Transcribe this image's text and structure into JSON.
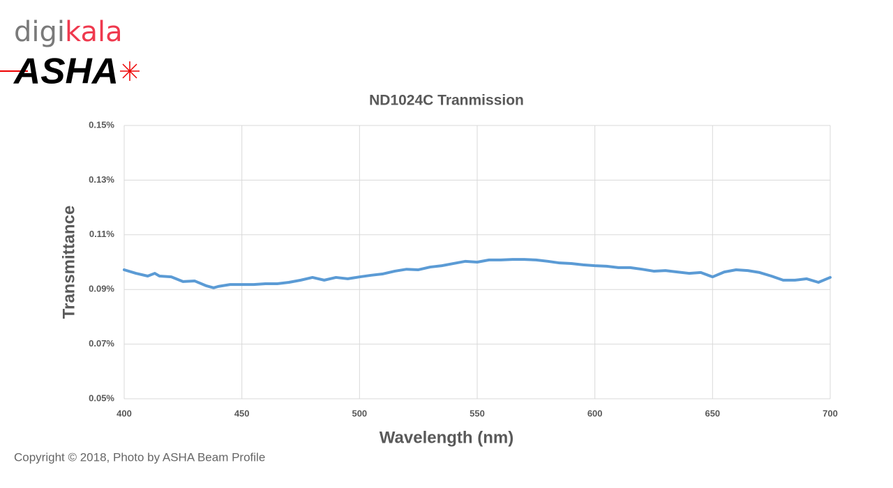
{
  "logo": {
    "digikala": [
      "digi",
      "kala"
    ],
    "asha": "ASHA"
  },
  "copyright": "Copyright © 2018, Photo by ASHA Beam Profile",
  "chart_data": {
    "type": "line",
    "title": "ND1024C Tranmission",
    "x_label": "Wavelength (nm)",
    "y_label": "Transmittance",
    "x": [
      400,
      405,
      410,
      413,
      415,
      420,
      425,
      430,
      435,
      438,
      440,
      445,
      450,
      455,
      460,
      465,
      470,
      475,
      480,
      485,
      490,
      495,
      500,
      505,
      510,
      515,
      520,
      525,
      530,
      535,
      540,
      545,
      550,
      555,
      560,
      565,
      570,
      575,
      580,
      585,
      590,
      595,
      600,
      605,
      610,
      615,
      620,
      625,
      630,
      635,
      640,
      645,
      650,
      655,
      660,
      665,
      670,
      675,
      680,
      685,
      690,
      695,
      700
    ],
    "values": [
      0.0972,
      0.0959,
      0.0949,
      0.0959,
      0.0949,
      0.0946,
      0.0929,
      0.0931,
      0.0913,
      0.0906,
      0.0911,
      0.0918,
      0.0918,
      0.0918,
      0.0921,
      0.0921,
      0.0926,
      0.0934,
      0.0944,
      0.0934,
      0.0944,
      0.0939,
      0.0946,
      0.0952,
      0.0957,
      0.0967,
      0.0974,
      0.0972,
      0.0982,
      0.0987,
      0.0995,
      0.1003,
      0.1,
      0.1008,
      0.1008,
      0.101,
      0.101,
      0.1008,
      0.1003,
      0.0997,
      0.0995,
      0.099,
      0.0987,
      0.0985,
      0.098,
      0.098,
      0.0974,
      0.0967,
      0.0969,
      0.0964,
      0.0959,
      0.0962,
      0.0946,
      0.0964,
      0.0972,
      0.0969,
      0.0962,
      0.0949,
      0.0934,
      0.0934,
      0.0939,
      0.0926,
      0.0944
    ],
    "color": "#5b9bd5",
    "xlim": [
      400,
      700
    ],
    "xticks": [
      400,
      450,
      500,
      550,
      600,
      650,
      700
    ],
    "ylim": [
      0.05,
      0.15
    ],
    "yticks": [
      {
        "value": 0.05,
        "label": "0.05%"
      },
      {
        "value": 0.07,
        "label": "0.07%"
      },
      {
        "value": 0.09,
        "label": "0.09%"
      },
      {
        "value": 0.11,
        "label": "0.11%"
      },
      {
        "value": 0.13,
        "label": "0.13%"
      },
      {
        "value": 0.15,
        "label": "0.15%"
      }
    ],
    "grid": true
  }
}
